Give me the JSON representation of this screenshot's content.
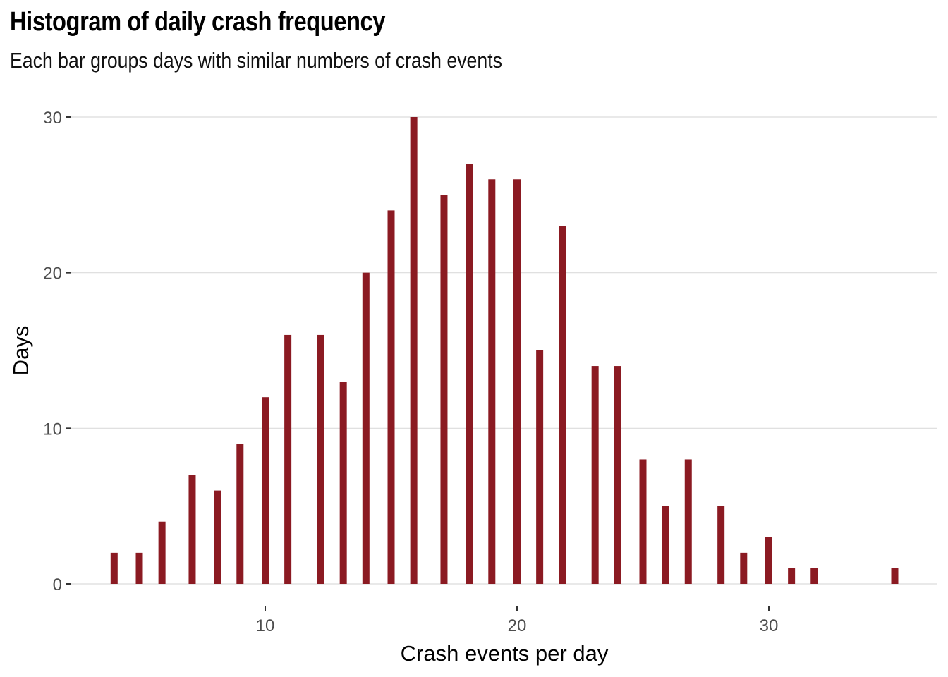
{
  "chart_data": {
    "type": "bar",
    "title": "Histogram of daily crash frequency",
    "subtitle": "Each bar groups days with similar numbers of crash events",
    "xlabel": "Crash events per day",
    "ylabel": "Days",
    "xlim": [
      3.0,
      36.5
    ],
    "ylim": [
      0,
      30
    ],
    "x_ticks": [
      10,
      20,
      30
    ],
    "y_ticks": [
      0,
      10,
      20,
      30
    ],
    "x_tick_labels": [
      "10",
      "20",
      "30"
    ],
    "y_tick_labels": [
      "0",
      "10",
      "20",
      "30"
    ],
    "grid": "horizontal",
    "bar_color": "#8B1A22",
    "x": [
      4.0,
      5.0,
      5.9,
      7.1,
      8.1,
      9.0,
      10.0,
      10.9,
      12.2,
      13.1,
      14.0,
      15.0,
      15.9,
      17.1,
      18.1,
      19.0,
      20.0,
      20.9,
      21.8,
      23.1,
      24.0,
      25.0,
      25.9,
      26.8,
      28.1,
      29.0,
      30.0,
      30.9,
      31.8,
      35.0
    ],
    "values": [
      2,
      2,
      4,
      7,
      6,
      9,
      12,
      16,
      16,
      13,
      20,
      24,
      30,
      25,
      27,
      26,
      26,
      15,
      23,
      14,
      14,
      8,
      5,
      8,
      5,
      2,
      3,
      1,
      1,
      1
    ]
  }
}
